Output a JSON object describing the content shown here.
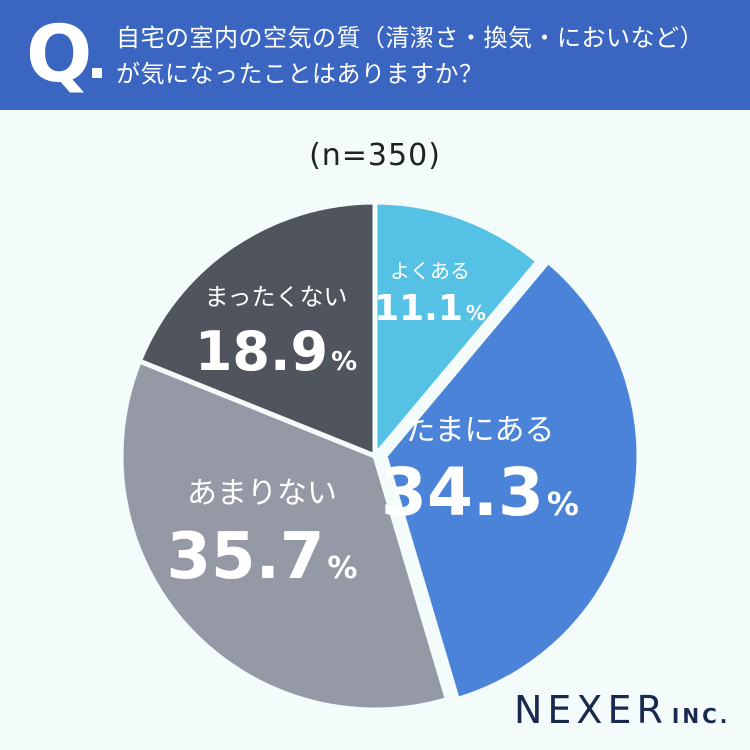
{
  "header": {
    "q_letter": "Q",
    "question_line1": "自宅の室内の空気の質（清潔さ・換気・においなど）",
    "question_line2": "が気になったことはありますか？"
  },
  "sample_size": "(n=350)",
  "logo": {
    "name": "NEXER",
    "suffix": "INC."
  },
  "colors": {
    "header_bg": "#3a66c2",
    "slice_often": "#55c1e4",
    "slice_sometimes": "#4a83d8",
    "slice_rarely": "#9499a5",
    "slice_never": "#50545d",
    "label_text": "#ffffff"
  },
  "chart_data": {
    "type": "pie",
    "title": "",
    "slices": [
      {
        "label": "よくある",
        "value": 11.1,
        "display": "11.1",
        "unit": "%"
      },
      {
        "label": "たまにある",
        "value": 34.3,
        "display": "34.3",
        "unit": "%"
      },
      {
        "label": "あまりない",
        "value": 35.7,
        "display": "35.7",
        "unit": "%"
      },
      {
        "label": "まったくない",
        "value": 18.9,
        "display": "18.9",
        "unit": "%"
      }
    ],
    "start": "12 o'clock",
    "direction": "clockwise",
    "explode": "たまにある"
  }
}
